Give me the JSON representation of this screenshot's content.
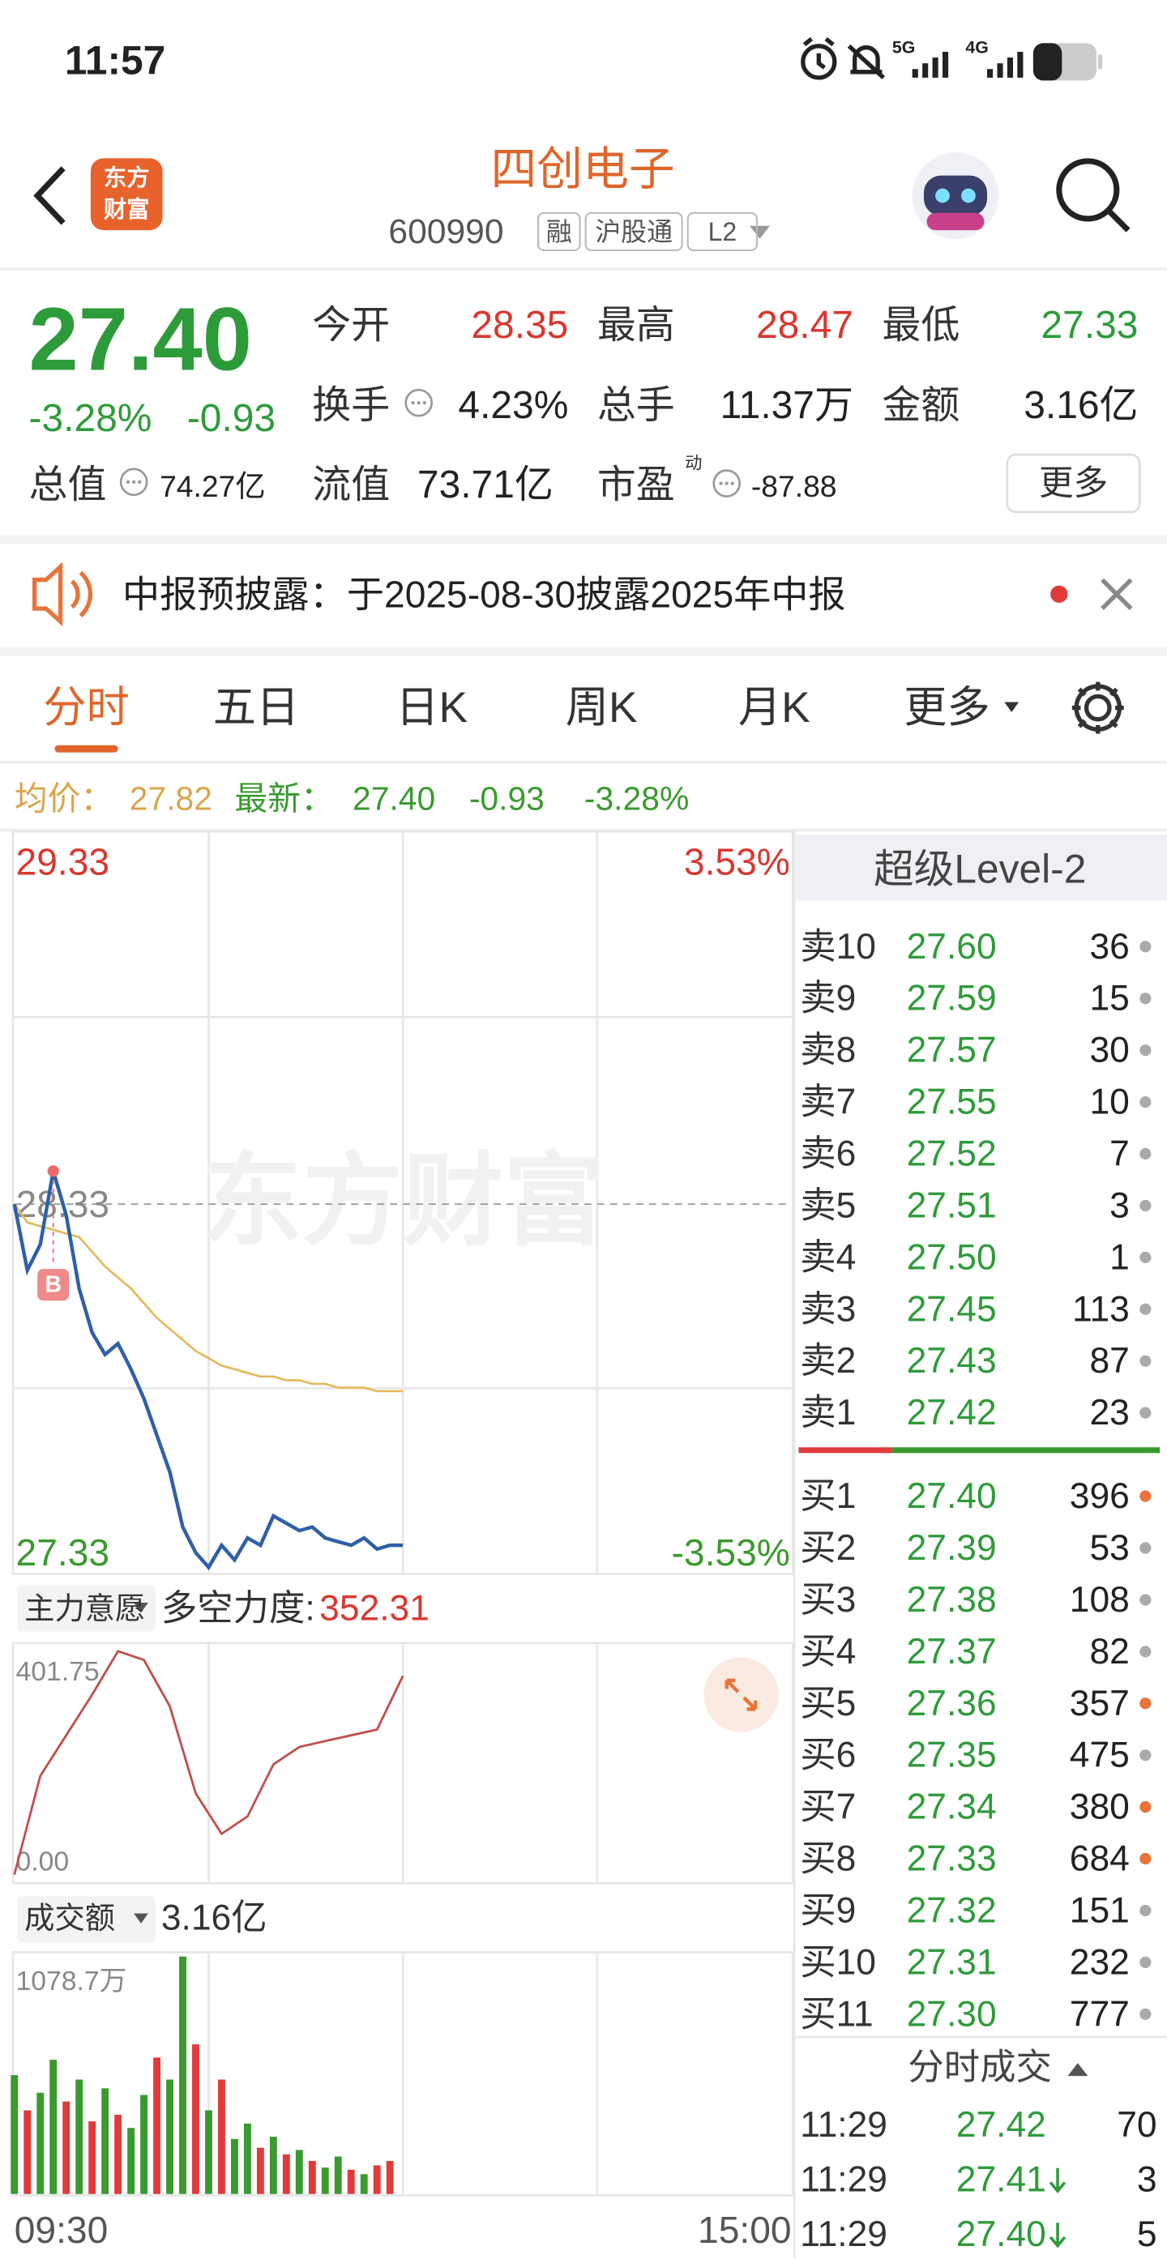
{
  "status_bar": {
    "time": "11:57",
    "sim1": "5G",
    "sim2": "4G"
  },
  "header": {
    "logo": [
      "东方",
      "财富"
    ],
    "name": "四创电子",
    "code": "600990",
    "tags": [
      "融",
      "沪股通",
      "L2"
    ]
  },
  "quote": {
    "price": "27.40",
    "change_pct": "-3.28%",
    "change": "-0.93",
    "color": "#2e9b3a",
    "fields": [
      {
        "label": "今开",
        "value": "28.35",
        "color": "#d8372f"
      },
      {
        "label": "最高",
        "value": "28.47",
        "color": "#d8372f"
      },
      {
        "label": "最低",
        "value": "27.33",
        "color": "#2e9b3a"
      },
      {
        "label": "换手",
        "value": "4.23%",
        "color": "#222222"
      },
      {
        "label": "总手",
        "value": "11.37万",
        "color": "#222222"
      },
      {
        "label": "金额",
        "value": "3.16亿",
        "color": "#222222"
      }
    ],
    "total_value": {
      "label": "总值",
      "value": "74.27亿"
    },
    "float_value": {
      "label": "流值",
      "value": "73.71亿"
    },
    "pe": {
      "label": "市盈",
      "sup": "动",
      "value": "-87.88"
    },
    "more": "更多"
  },
  "notice": {
    "text": "中报预披露：于2025-08-30披露2025年中报"
  },
  "tabs": {
    "items": [
      "分时",
      "五日",
      "日K",
      "周K",
      "月K",
      "更多"
    ],
    "active": 0
  },
  "info_line": {
    "avg_label": "均价：",
    "avg": "27.82",
    "latest_label": "最新：",
    "latest": "27.40",
    "change": "-0.93",
    "change_pct": "-3.28%"
  },
  "chart_data": [
    {
      "type": "line",
      "ylim": [
        27.33,
        29.33
      ],
      "yticks": [
        29.33,
        28.33,
        27.33
      ],
      "y2lim": [
        -3.53,
        3.53
      ],
      "y2ticks": [
        {
          "value": 3.53,
          "label": "3.53%"
        },
        {
          "value": -3.53,
          "label": "-3.53%"
        }
      ],
      "xlim": [
        0,
        240
      ],
      "grid": true,
      "watermark": "东方财富",
      "marker": {
        "text": "B",
        "x": 12
      },
      "x": [
        0,
        4,
        8,
        12,
        16,
        20,
        24,
        28,
        32,
        36,
        40,
        44,
        48,
        52,
        56,
        60,
        64,
        68,
        72,
        76,
        80,
        84,
        88,
        92,
        96,
        100,
        104,
        108,
        112,
        116,
        120
      ],
      "series": [
        {
          "color": "#2f5fa8",
          "values": [
            28.33,
            28.15,
            28.22,
            28.42,
            28.3,
            28.1,
            27.98,
            27.92,
            27.95,
            27.88,
            27.8,
            27.7,
            27.6,
            27.45,
            27.38,
            27.34,
            27.4,
            27.36,
            27.42,
            27.4,
            27.48,
            27.46,
            27.44,
            27.45,
            27.42,
            27.41,
            27.4,
            27.42,
            27.39,
            27.4,
            27.4
          ]
        },
        {
          "color": "#e6b85c",
          "values": [
            28.33,
            28.28,
            28.27,
            28.26,
            28.25,
            28.24,
            28.2,
            28.16,
            28.13,
            28.1,
            28.06,
            28.02,
            27.99,
            27.96,
            27.93,
            27.91,
            27.89,
            27.88,
            27.87,
            27.86,
            27.86,
            27.85,
            27.85,
            27.84,
            27.84,
            27.83,
            27.83,
            27.83,
            27.82,
            27.82,
            27.82
          ]
        }
      ]
    },
    {
      "type": "line",
      "title": "主力意愿",
      "label": "多空力度:",
      "value_label": "352.31",
      "ylim": [
        0,
        401.75
      ],
      "yticks": [
        401.75,
        {
          "value": 0,
          "label": "0.00"
        }
      ],
      "xlim": [
        0,
        240
      ],
      "color": "#c0504d",
      "x": [
        0,
        8,
        16,
        24,
        32,
        40,
        48,
        56,
        64,
        72,
        80,
        88,
        96,
        104,
        112,
        120
      ],
      "values": [
        10,
        180,
        250,
        320,
        395,
        380,
        300,
        150,
        80,
        110,
        200,
        230,
        240,
        250,
        260,
        352.31
      ]
    },
    {
      "type": "bar",
      "title": "成交额",
      "total": "3.16亿",
      "ylim": [
        0,
        1078.7
      ],
      "yticks": [
        {
          "value": 1078.7,
          "label": "1078.7万"
        }
      ],
      "xlim": [
        0,
        240
      ],
      "xticks": [
        {
          "value": 0,
          "label": "09:30"
        },
        {
          "value": 240,
          "label": "15:00"
        }
      ],
      "x": [
        0,
        4,
        8,
        12,
        16,
        20,
        24,
        28,
        32,
        36,
        40,
        44,
        48,
        52,
        56,
        60,
        64,
        68,
        72,
        76,
        80,
        84,
        88,
        92,
        96,
        100,
        104,
        108,
        112,
        116
      ],
      "values": [
        540,
        380,
        460,
        610,
        420,
        520,
        330,
        480,
        360,
        300,
        450,
        620,
        520,
        1078.7,
        680,
        380,
        520,
        250,
        320,
        210,
        260,
        180,
        200,
        150,
        120,
        170,
        110,
        90,
        130,
        150
      ],
      "colors": [
        "#3a9a2f",
        "#e03b3b",
        "#3a9a2f",
        "#3a9a2f",
        "#e03b3b",
        "#3a9a2f",
        "#e03b3b",
        "#3a9a2f",
        "#e03b3b",
        "#3a9a2f",
        "#3a9a2f",
        "#e03b3b",
        "#3a9a2f",
        "#3a9a2f",
        "#e03b3b",
        "#3a9a2f",
        "#e03b3b",
        "#3a9a2f",
        "#3a9a2f",
        "#e03b3b",
        "#3a9a2f",
        "#e03b3b",
        "#3a9a2f",
        "#e03b3b",
        "#3a9a2f",
        "#3a9a2f",
        "#e03b3b",
        "#3a9a2f",
        "#e03b3b",
        "#e03b3b"
      ]
    }
  ],
  "order_book": {
    "title": "超级Level-2",
    "price_color": "#2e9b3a",
    "asks": [
      {
        "label": "卖10",
        "price": "27.60",
        "volume": "36",
        "dot": "#aaaaaa"
      },
      {
        "label": "卖9",
        "price": "27.59",
        "volume": "15",
        "dot": "#aaaaaa"
      },
      {
        "label": "卖8",
        "price": "27.57",
        "volume": "30",
        "dot": "#aaaaaa"
      },
      {
        "label": "卖7",
        "price": "27.55",
        "volume": "10",
        "dot": "#aaaaaa"
      },
      {
        "label": "卖6",
        "price": "27.52",
        "volume": "7",
        "dot": "#aaaaaa"
      },
      {
        "label": "卖5",
        "price": "27.51",
        "volume": "3",
        "dot": "#aaaaaa"
      },
      {
        "label": "卖4",
        "price": "27.50",
        "volume": "1",
        "dot": "#aaaaaa"
      },
      {
        "label": "卖3",
        "price": "27.45",
        "volume": "113",
        "dot": "#aaaaaa"
      },
      {
        "label": "卖2",
        "price": "27.43",
        "volume": "87",
        "dot": "#aaaaaa"
      },
      {
        "label": "卖1",
        "price": "27.42",
        "volume": "23",
        "dot": "#aaaaaa"
      }
    ],
    "bids": [
      {
        "label": "买1",
        "price": "27.40",
        "volume": "396",
        "dot": "#e8743b"
      },
      {
        "label": "买2",
        "price": "27.39",
        "volume": "53",
        "dot": "#aaaaaa"
      },
      {
        "label": "买3",
        "price": "27.38",
        "volume": "108",
        "dot": "#aaaaaa"
      },
      {
        "label": "买4",
        "price": "27.37",
        "volume": "82",
        "dot": "#aaaaaa"
      },
      {
        "label": "买5",
        "price": "27.36",
        "volume": "357",
        "dot": "#e8743b"
      },
      {
        "label": "买6",
        "price": "27.35",
        "volume": "475",
        "dot": "#aaaaaa"
      },
      {
        "label": "买7",
        "price": "27.34",
        "volume": "380",
        "dot": "#e8743b"
      },
      {
        "label": "买8",
        "price": "27.33",
        "volume": "684",
        "dot": "#e8743b"
      },
      {
        "label": "买9",
        "price": "27.32",
        "volume": "151",
        "dot": "#aaaaaa"
      },
      {
        "label": "买10",
        "price": "27.31",
        "volume": "232",
        "dot": "#aaaaaa"
      },
      {
        "label": "买11",
        "price": "27.30",
        "volume": "777",
        "dot": "#aaaaaa"
      }
    ]
  },
  "trades": {
    "title": "分时成交",
    "rows": [
      {
        "time": "11:29",
        "price": "27.42",
        "volume": "70",
        "down": false
      },
      {
        "time": "11:29",
        "price": "27.41",
        "volume": "3",
        "down": true
      },
      {
        "time": "11:29",
        "price": "27.40",
        "volume": "5",
        "down": true
      }
    ]
  }
}
